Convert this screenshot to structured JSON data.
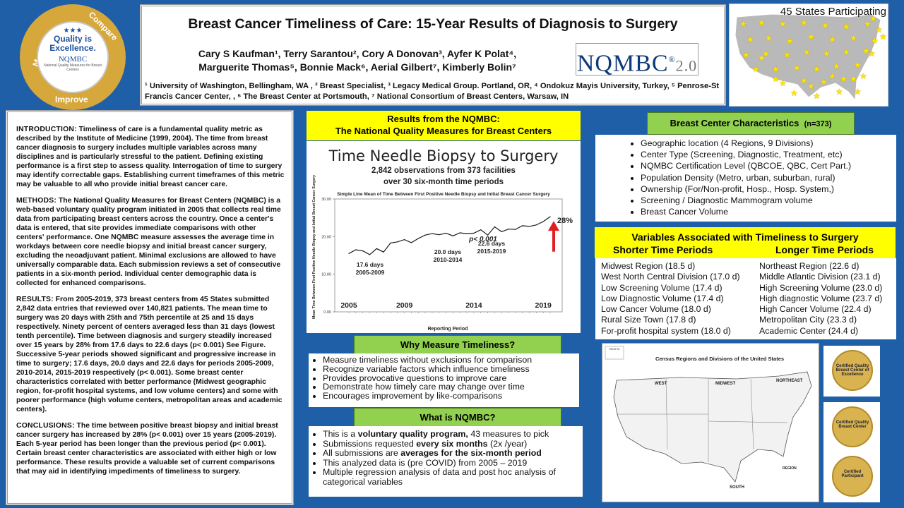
{
  "header": {
    "title": "Breast Cancer Timeliness of Care: 15-Year Results of Diagnosis to Surgery",
    "authors_line1": "Cary S Kaufman¹, Terry Sarantou², Cory A Donovan³, Ayfer K Polat⁴,",
    "authors_line2": "Marguerite Thomas⁵, Bonnie Mack⁶, Aerial Gilbert⁷, Kimberly Bolin⁷",
    "affiliations": "¹ University of Washington, Bellingham, WA , ² Breast Specialist, ³ Legacy Medical Group. Portland, OR, ⁴ Ondokuz Mayis University, Turkey, ⁵ Penrose-St Francis Cancer Center, , ⁶ The Breast Center at Portsmouth, ⁷ National Consortium of Breast Centers, Warsaw, IN",
    "logo_main": "NQMBC",
    "logo_version": "2.0"
  },
  "seal": {
    "word_measure": "Measure",
    "word_compare": "Compare",
    "word_improve": "Improve",
    "center_line1": "Quality is",
    "center_line2": "Excellence.",
    "center_brand": "NQMBC",
    "center_sub": "National Quality Measures for Breast Centers"
  },
  "states": {
    "label": "45 States Participating"
  },
  "left": {
    "intro_head": "INTRODUCTION:",
    "intro": "Timeliness of care is a fundamental quality metric as described by the Institute of Medicine (1999, 2004). The time from breast cancer diagnosis to surgery includes multiple variables across many disciplines and is particularly stressful to the patient. Defining existing performance is a first step to assess quality. Interrogation of time to surgery may identify correctable gaps. Establishing current timeframes of this metric may be valuable to all who provide initial breast cancer care.",
    "methods_head": "METHODS:",
    "methods": "The National Quality Measures for Breast Centers (NQMBC) is a web-based voluntary quality program initiated in 2005 that collects real time data from participating breast centers across the country. Once a center's data is entered, that site provides immediate comparisons with other centers' performance. One NQMBC measure assesses the average time in workdays between core needle biopsy and initial breast cancer surgery, excluding the neoadjuvant patient. Minimal exclusions are allowed to have universally comparable data. Each submission reviews a set of consecutive patients in a six-month period. Individual center demographic data is collected for enhanced comparisons.",
    "results_head": "RESULTS:",
    "results": "From 2005-2019, 373 breast centers from 45 States submitted 2,842 data entries that reviewed over 140,821 patients. The mean time to surgery was 20 days with 25th and 75th percentile at 25 and 15 days respectively. Ninety percent of centers averaged less than 31 days (lowest tenth percentile). Time between diagnosis and surgery steadily increased over 15 years by 28% from 17.6 days to 22.6 days (p< 0.001) See Figure. Successive 5-year periods showed significant and progressive increase in time to surgery; 17.6 days, 20.0 days and 22.6 days for periods 2005-2009, 2010-2014, 2015-2019 respectively (p< 0.001). Some breast center characteristics correlated with better performance (Midwest geographic region, for-profit hospital systems, and low volume centers) and some with poorer performance (high volume centers, metropolitan areas and academic centers).",
    "conclusions_head": "CONCLUSIONS:",
    "conclusions": "The time between positive breast biopsy and initial breast cancer surgery has increased by 28% (p< 0.001) over 15 years (2005-2019). Each 5-year period has been longer than the previous period (p< 0.001). Certain breast center characteristics are associated with either high or low performance. These results provide a valuable set of current comparisons that may aid in identifying impediments of timeliness to surgery."
  },
  "results_header": {
    "line1": "Results from the NQMBC:",
    "line2": "The National Quality Measures for Breast Centers"
  },
  "chart_data": {
    "type": "line",
    "title": "Time Needle Biopsy to Surgery",
    "subtitle1": "2,842 observations from 373 facilities",
    "subtitle2": "over 30 six-month time periods",
    "caption": "Simple Line Mean of Time Between First Positive Needle Biopsy and Initial Breast Cancer Surgery",
    "ylabel": "Mean Time Between First Positive Needle Biopsy and Initial Breast Cancer Surgery",
    "xlabel": "Reporting Period",
    "ylim": [
      0,
      30
    ],
    "yticks": [
      "30.00",
      "20.00",
      "10.00",
      "0.00"
    ],
    "year_labels": [
      "2005",
      "2009",
      "2014",
      "2019"
    ],
    "values": [
      15.5,
      16.5,
      16.2,
      15.2,
      16.8,
      15.9,
      18.3,
      18.6,
      19.2,
      18.4,
      19.5,
      20.4,
      20.8,
      20.5,
      20.9,
      20.2,
      21.0,
      20.8,
      20.9,
      21.8,
      20.4,
      22.6,
      21.3,
      22.0,
      21.9,
      22.9,
      22.7,
      23.1,
      24.0,
      25.3
    ],
    "annotations": [
      {
        "line1": "17.6 days",
        "line2": "2005-2009"
      },
      {
        "line1": "20.0 days",
        "line2": "2010-2014"
      },
      {
        "line1": "22.6 days",
        "line2": "2015-2019"
      }
    ],
    "p_value": "p< 0.001",
    "increase_label": "28%"
  },
  "why": {
    "header": "Why Measure Timeliness?",
    "items": [
      "Measure timeliness without exclusions for comparison",
      "Recognize variable factors which influence timeliness",
      "Provides provocative questions to improve care",
      "Demonstrate how timely care may change over time",
      "Encourages improvement by like-comparisons"
    ]
  },
  "what": {
    "header": "What is NQMBC?",
    "i1_pre": "This is a ",
    "i1_bold": "voluntary quality program,",
    "i1_post": " 43 measures to pick",
    "i2_pre": "Submissions requested ",
    "i2_bold": "every six months",
    "i2_post": " (2x /year)",
    "i3_pre": "All submissions are ",
    "i3_bold": "averages for the six-month period",
    "i4": "This analyzed data is (pre COVID) from 2005 – 2019",
    "i5": "Multiple regression analysis of data and post hoc analysis of categorical variables"
  },
  "bcc": {
    "header": "Breast Center Characteristics",
    "n": "(n=373)",
    "items": [
      "Geographic location (4 Regions, 9 Divisions)",
      "Center Type (Screening, Diagnostic, Treatment, etc)",
      "NQMBC Certification Level (QBCOE, QBC, Cert Part.)",
      "Population Density (Metro, urban, suburban, rural)",
      "Ownership (For/Non-profit, Hosp., Hosp. System,)",
      "Screening / Diagnostic Mammogram volume",
      "Breast Cancer Volume"
    ]
  },
  "variables": {
    "header": "Variables Associated with Timeliness to Surgery",
    "shorter_label": "Shorter Time Periods",
    "longer_label": "Longer Time Periods",
    "shorter": [
      "Midwest Region (18.5 d)",
      "West North Central Division (17.0 d)",
      "Low Screening Volume (17.4 d)",
      "Low Diagnostic Volume (17.4 d)",
      "Low Cancer Volume (18.0 d)",
      "Rural Size Town (17.8 d)",
      "For-profit hospital system (18.0 d)"
    ],
    "longer": [
      "Northeast Region (22.6 d)",
      "Middle Atlantic Division (23.1 d)",
      "High Screening Volume (23.0 d)",
      "High diagnostic Volume (23.7 d)",
      "High Cancer Volume (22.4 d)",
      "Metropolitan City (23.3 d)",
      "Academic Center (24.4 d)"
    ]
  },
  "census_map": {
    "title": "Census Regions and Divisions of the United States",
    "pacific": "PACIFIC",
    "west": "WEST",
    "midwest": "MIDWEST",
    "northeast": "NORTHEAST",
    "south": "SOUTH",
    "legend": "REGION"
  },
  "badges": [
    {
      "line1": "Certified Quality",
      "line2": "Breast Center of Excellence"
    },
    {
      "line1": "Certified Quality",
      "line2": "Breast Center"
    },
    {
      "line1": "Certified",
      "line2": "Participant"
    }
  ]
}
